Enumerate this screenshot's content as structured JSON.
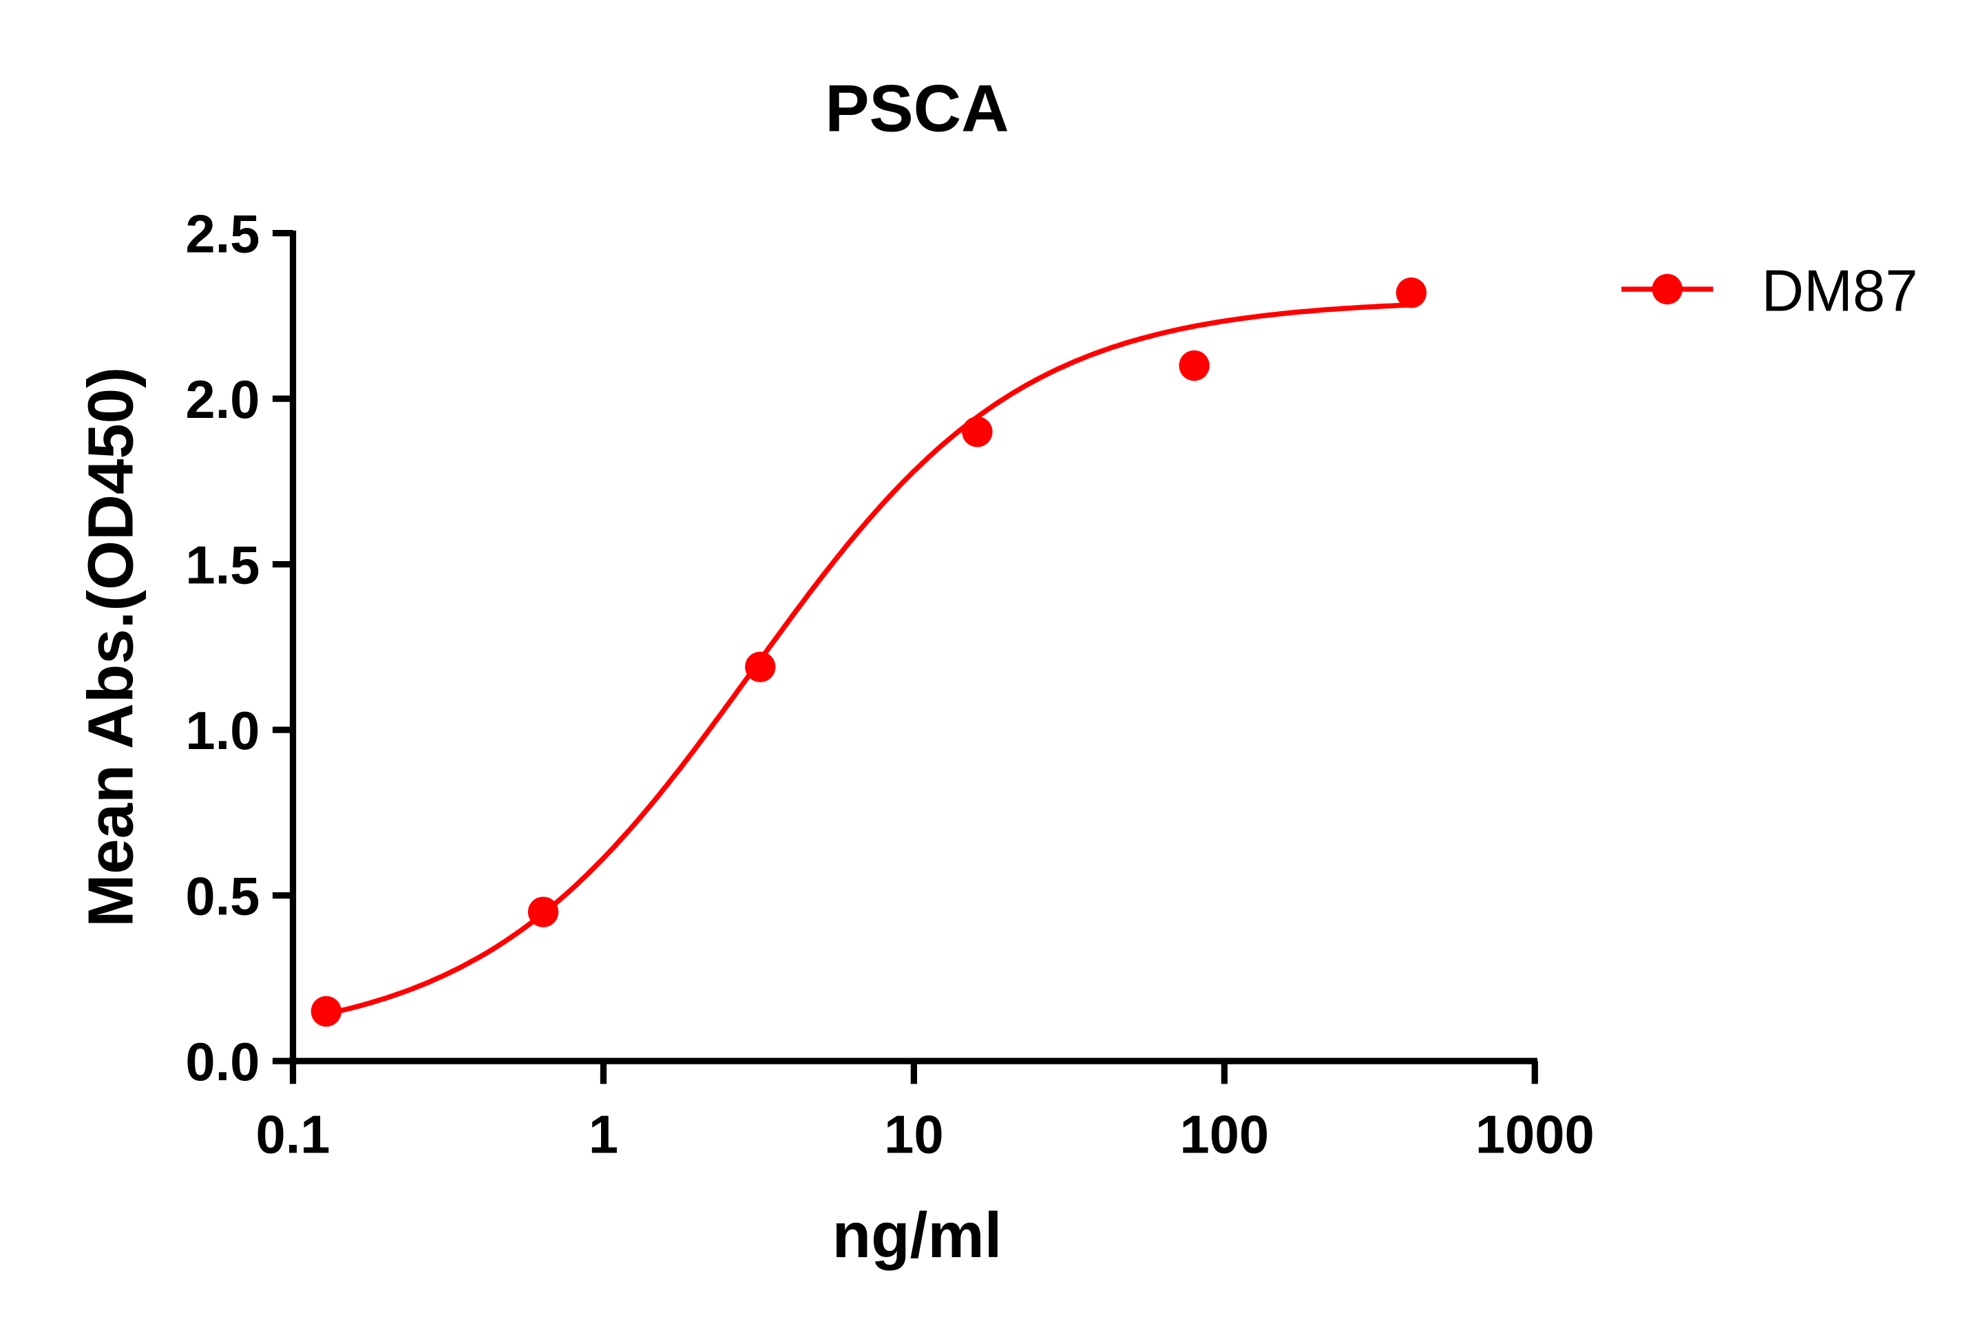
{
  "chart_data": {
    "type": "line",
    "title": "PSCA",
    "xlabel": "ng/ml",
    "ylabel": "Mean Abs.(OD450)",
    "x_scale": "log",
    "xlim": [
      0.1,
      1000
    ],
    "ylim": [
      0,
      2.5
    ],
    "x_ticks": [
      "0.1",
      "1",
      "10",
      "100",
      "1000"
    ],
    "y_ticks": [
      "0.0",
      "0.5",
      "1.0",
      "1.5",
      "2.0",
      "2.5"
    ],
    "grid": false,
    "legend_position": "top-right",
    "series": [
      {
        "name": "DM87",
        "color": "#ff0000",
        "marker": "circle",
        "fit": "sigmoidal curve",
        "x": [
          0.128,
          0.64,
          3.2,
          16,
          80,
          400
        ],
        "y": [
          0.15,
          0.45,
          1.19,
          1.9,
          2.1,
          2.32
        ]
      }
    ]
  }
}
